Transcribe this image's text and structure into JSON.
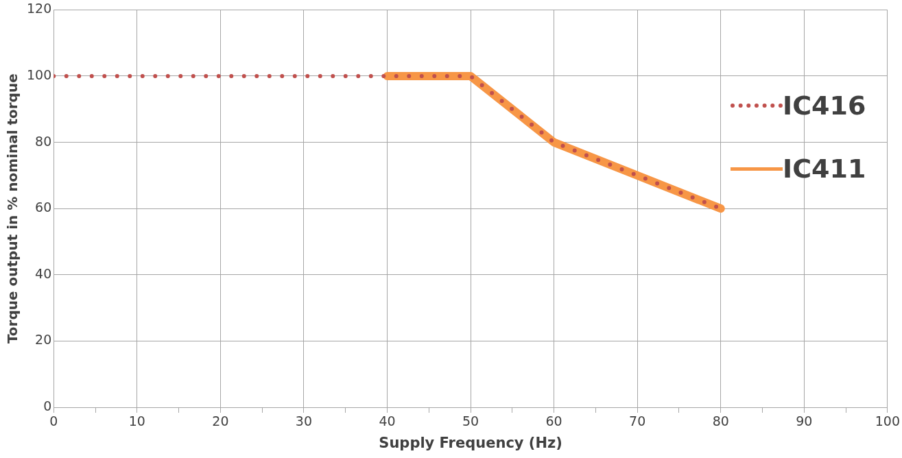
{
  "chart_data": {
    "type": "line",
    "xlabel": "Supply Frequency (Hz)",
    "ylabel": "Torque output in % nominal torque",
    "xlim": [
      0,
      100
    ],
    "ylim": [
      0,
      120
    ],
    "xticks": [
      0,
      {
        "value": 5,
        "label": null
      },
      10,
      {
        "value": 15,
        "label": null
      },
      20,
      {
        "value": 25,
        "label": null
      },
      30,
      {
        "value": 35,
        "label": null
      },
      40,
      {
        "value": 45,
        "label": null
      },
      50,
      {
        "value": 55,
        "label": null
      },
      60,
      {
        "value": 65,
        "label": null
      },
      70,
      {
        "value": 75,
        "label": null
      },
      80,
      {
        "value": 85,
        "label": null
      },
      90,
      {
        "value": 95,
        "label": null
      },
      100
    ],
    "yticks": [
      0,
      20,
      40,
      60,
      80,
      100,
      120
    ],
    "grid": true,
    "legend": "right",
    "series": [
      {
        "name": "IC416",
        "color": "#c0504d",
        "line_style": "dotted",
        "x": [
          0,
          50,
          60,
          80
        ],
        "values": [
          100,
          100,
          80,
          60
        ]
      },
      {
        "name": "IC411",
        "color": "#f79646",
        "line_style": "solid",
        "x": [
          40,
          50,
          60,
          80
        ],
        "values": [
          100,
          100,
          80,
          60
        ]
      }
    ]
  }
}
